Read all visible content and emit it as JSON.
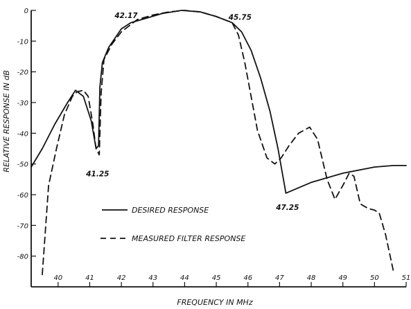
{
  "chart_data": {
    "type": "line",
    "title": "",
    "xlabel": "FREQUENCY IN MHz",
    "ylabel": "RELATIVE RESPONSE IN dB",
    "xlim": [
      39.15,
      51
    ],
    "ylim": [
      -90,
      0
    ],
    "x_ticks": [
      "40",
      "41",
      "42",
      "43",
      "44",
      "45",
      "46",
      "47",
      "48",
      "49",
      "50",
      "51"
    ],
    "y_ticks": [
      "0",
      "-10",
      "-20",
      "-30",
      "-40",
      "-50",
      "-60",
      "-70",
      "-80"
    ],
    "grid": false,
    "legend_position": "center-left",
    "series": [
      {
        "name": "DESIRED RESPONSE",
        "style": "solid",
        "color": "#111111",
        "points": [
          [
            39.15,
            -51
          ],
          [
            39.5,
            -45
          ],
          [
            39.9,
            -37
          ],
          [
            40.3,
            -30
          ],
          [
            40.55,
            -26
          ],
          [
            40.8,
            -28
          ],
          [
            41.05,
            -36
          ],
          [
            41.2,
            -45
          ],
          [
            41.28,
            -44
          ],
          [
            41.32,
            -25
          ],
          [
            41.4,
            -17
          ],
          [
            41.6,
            -12
          ],
          [
            42.0,
            -6
          ],
          [
            42.3,
            -4
          ],
          [
            42.8,
            -2.5
          ],
          [
            43.3,
            -1
          ],
          [
            43.9,
            0
          ],
          [
            44.5,
            -0.5
          ],
          [
            45.0,
            -2
          ],
          [
            45.5,
            -4
          ],
          [
            45.8,
            -7
          ],
          [
            46.1,
            -13
          ],
          [
            46.4,
            -22
          ],
          [
            46.7,
            -33
          ],
          [
            46.95,
            -45
          ],
          [
            47.2,
            -59.5
          ],
          [
            48.0,
            -56
          ],
          [
            49.0,
            -53
          ],
          [
            50.0,
            -51
          ],
          [
            50.6,
            -50.5
          ],
          [
            51.0,
            -50.5
          ]
        ]
      },
      {
        "name": "MEASURED FILTER RESPONSE",
        "style": "dashed",
        "color": "#111111",
        "points": [
          [
            39.5,
            -86
          ],
          [
            39.7,
            -57
          ],
          [
            39.95,
            -45
          ],
          [
            40.2,
            -34
          ],
          [
            40.45,
            -28
          ],
          [
            40.6,
            -26.5
          ],
          [
            40.8,
            -26
          ],
          [
            40.95,
            -28
          ],
          [
            41.1,
            -37
          ],
          [
            41.2,
            -45
          ],
          [
            41.3,
            -47
          ],
          [
            41.36,
            -27
          ],
          [
            41.45,
            -16
          ],
          [
            41.7,
            -11
          ],
          [
            42.0,
            -7
          ],
          [
            42.5,
            -3
          ],
          [
            43.0,
            -1.5
          ],
          [
            43.5,
            -0.5
          ],
          [
            44.0,
            0
          ],
          [
            44.5,
            -0.5
          ],
          [
            45.0,
            -2
          ],
          [
            45.5,
            -4
          ],
          [
            45.7,
            -8
          ],
          [
            45.9,
            -17
          ],
          [
            46.1,
            -28
          ],
          [
            46.3,
            -39
          ],
          [
            46.6,
            -48
          ],
          [
            46.85,
            -50
          ],
          [
            47.05,
            -48
          ],
          [
            47.3,
            -44
          ],
          [
            47.6,
            -40
          ],
          [
            47.95,
            -38
          ],
          [
            48.2,
            -42
          ],
          [
            48.5,
            -55
          ],
          [
            48.75,
            -61.5
          ],
          [
            49.0,
            -57
          ],
          [
            49.2,
            -53
          ],
          [
            49.35,
            -54
          ],
          [
            49.55,
            -63
          ],
          [
            49.8,
            -64.5
          ],
          [
            50.0,
            -65
          ],
          [
            50.15,
            -66
          ],
          [
            50.35,
            -73
          ],
          [
            50.6,
            -85
          ]
        ]
      }
    ],
    "annotations": [
      {
        "text": "42.17",
        "x": 42.15,
        "y": -2.5
      },
      {
        "text": "45.75",
        "x": 45.75,
        "y": -3
      },
      {
        "text": "41.25",
        "x": 41.25,
        "y": -54
      },
      {
        "text": "47.25",
        "x": 47.25,
        "y": -65
      }
    ]
  }
}
